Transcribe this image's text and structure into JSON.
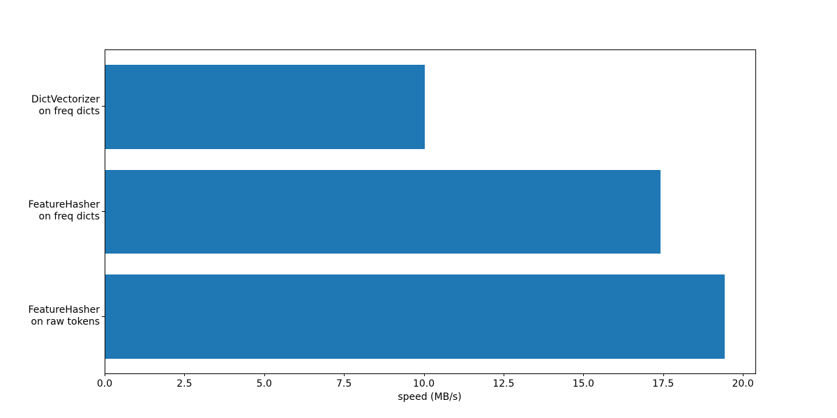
{
  "chart_data": {
    "type": "bar",
    "orientation": "horizontal",
    "title": "",
    "xlabel": "speed (MB/s)",
    "ylabel": "",
    "categories": [
      "DictVectorizer\non freq dicts",
      "FeatureHasher\non freq dicts",
      "FeatureHasher\non raw tokens"
    ],
    "values": [
      10.0,
      17.4,
      19.4
    ],
    "xtick_labels": [
      "0.0",
      "2.5",
      "5.0",
      "7.5",
      "10.0",
      "12.5",
      "15.0",
      "17.5",
      "20.0"
    ],
    "xlim": [
      0,
      20.37
    ],
    "bar_color": "#1f77b4",
    "grid": false,
    "legend": null,
    "bar_height_fraction": 0.8
  }
}
